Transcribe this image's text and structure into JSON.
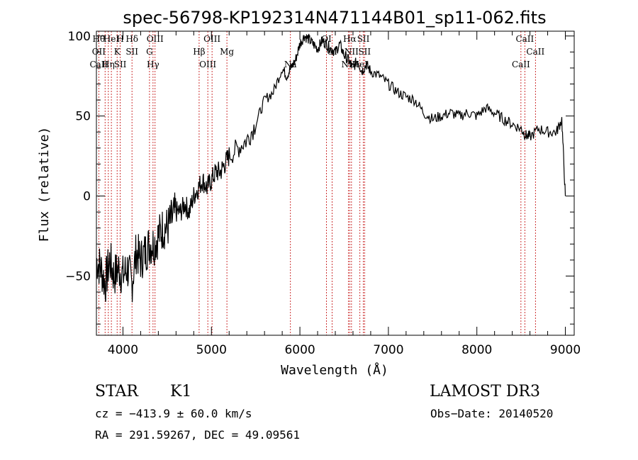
{
  "chart_data": {
    "type": "line",
    "title": "spec-56798-KP192314N471144B01_sp11-062.fits",
    "xlabel": "Wavelength (Å)",
    "ylabel": "Flux (relative)",
    "xlim": [
      3700,
      9100
    ],
    "ylim": [
      -87,
      103
    ],
    "xticks": [
      4000,
      5000,
      6000,
      7000,
      8000,
      9000
    ],
    "yticks": [
      -50,
      0,
      50,
      100
    ],
    "grid": false,
    "series": [
      {
        "x": [
          3700,
          3750,
          3800,
          3850,
          3900,
          3950,
          4000,
          4050,
          4100,
          4150,
          4200,
          4250,
          4300,
          4350,
          4400,
          4450,
          4500,
          4550,
          4600,
          4650,
          4700,
          4750,
          4800,
          4850,
          4900,
          4950,
          5000,
          5050,
          5100,
          5150,
          5200,
          5300,
          5400,
          5500,
          5600,
          5700,
          5800,
          5850,
          5900,
          5950,
          6000,
          6050,
          6100,
          6150,
          6200,
          6250,
          6300,
          6350,
          6400,
          6450,
          6500,
          6550,
          6600,
          6650,
          6700,
          6750,
          6800,
          6900,
          7000,
          7100,
          7200,
          7300,
          7400,
          7500,
          7600,
          7700,
          7800,
          7900,
          8000,
          8100,
          8200,
          8300,
          8400,
          8500,
          8550,
          8600,
          8700,
          8800,
          8900,
          8960,
          9000
        ],
        "y": [
          -40,
          -45,
          -55,
          -40,
          -50,
          -45,
          -50,
          -45,
          -55,
          -35,
          -40,
          -35,
          -30,
          -30,
          -25,
          -20,
          -20,
          -15,
          -10,
          -10,
          -5,
          -10,
          0,
          5,
          10,
          5,
          10,
          15,
          15,
          20,
          25,
          30,
          35,
          45,
          60,
          65,
          80,
          75,
          80,
          85,
          95,
          100,
          98,
          95,
          92,
          97,
          95,
          92,
          90,
          95,
          88,
          85,
          80,
          85,
          78,
          82,
          78,
          75,
          70,
          65,
          62,
          60,
          52,
          48,
          50,
          52,
          50,
          52,
          50,
          55,
          52,
          48,
          45,
          42,
          38,
          37,
          42,
          40,
          40,
          48,
          0
        ]
      }
    ],
    "line_markers": [
      {
        "w": 3727,
        "labels": [
          "Hθ",
          "OII",
          "CaII"
        ]
      },
      {
        "w": 3798,
        "labels": []
      },
      {
        "w": 3835,
        "labels": [
          "Hη"
        ]
      },
      {
        "w": 3869,
        "labels": [
          "HeI"
        ]
      },
      {
        "w": 3934,
        "labels": [
          "K"
        ]
      },
      {
        "w": 3969,
        "labels": [
          "SII",
          "H"
        ]
      },
      {
        "w": 4102,
        "labels": [
          "Hδ",
          "SII"
        ]
      },
      {
        "w": 4300,
        "labels": [
          "G"
        ]
      },
      {
        "w": 4340,
        "labels": [
          "Hγ"
        ]
      },
      {
        "w": 4363,
        "labels": [
          "OIII"
        ]
      },
      {
        "w": 4861,
        "labels": [
          "Hβ"
        ]
      },
      {
        "w": 4959,
        "labels": [
          "OIII"
        ]
      },
      {
        "w": 5007,
        "labels": [
          "OIII"
        ]
      },
      {
        "w": 5175,
        "labels": [
          "Mg"
        ]
      },
      {
        "w": 5893,
        "labels": [
          "Na"
        ]
      },
      {
        "w": 6300,
        "labels": [
          "OI"
        ]
      },
      {
        "w": 6364,
        "labels": [
          "OI"
        ]
      },
      {
        "w": 6548,
        "labels": [
          "NII"
        ]
      },
      {
        "w": 6563,
        "labels": [
          "Hα"
        ]
      },
      {
        "w": 6583,
        "labels": [
          "NII"
        ]
      },
      {
        "w": 6678,
        "labels": [
          "HeI"
        ]
      },
      {
        "w": 6717,
        "labels": [
          "SII"
        ]
      },
      {
        "w": 6731,
        "labels": [
          "SII"
        ]
      },
      {
        "w": 8498,
        "labels": [
          "CaII"
        ]
      },
      {
        "w": 8542,
        "labels": [
          "CaII"
        ]
      },
      {
        "w": 8662,
        "labels": [
          "CaII"
        ]
      }
    ]
  },
  "info": {
    "class": "STAR",
    "subclass": "K1",
    "survey": "LAMOST DR3",
    "cz": "cz = −413.9 ± 60.0 km/s",
    "obsdate": "Obs−Date: 20140520",
    "radec": "RA = 291.59267, DEC =  49.09561"
  },
  "colors": {
    "marker": "#c00000",
    "spectrum": "#000000"
  }
}
